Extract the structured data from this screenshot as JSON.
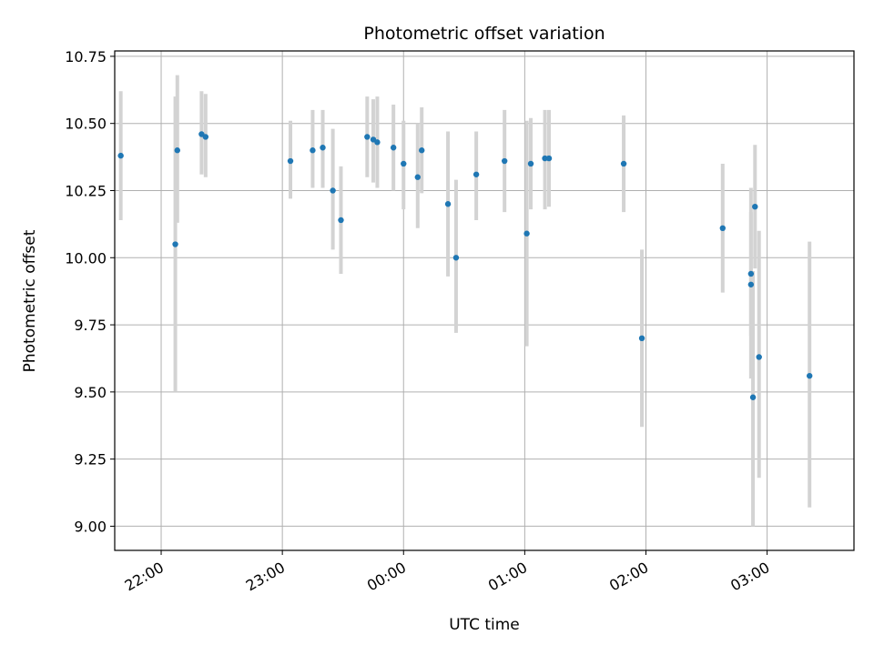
{
  "chart_data": {
    "type": "scatter",
    "title": "Photometric offset variation",
    "xlabel": "UTC time",
    "ylabel": "Photometric offset",
    "x_axis_type": "time",
    "xlim": [
      "21:37",
      "03:43"
    ],
    "ylim": [
      8.91,
      10.77
    ],
    "x_ticks": [
      "22:00",
      "23:00",
      "00:00",
      "01:00",
      "02:00",
      "03:00"
    ],
    "y_ticks": [
      "9.00",
      "9.25",
      "9.50",
      "9.75",
      "10.00",
      "10.25",
      "10.50",
      "10.75"
    ],
    "grid": true,
    "x_tick_rotation": "30 degrees",
    "marker_color": "#1f77b4",
    "errorbar_color": "#d3d3d3",
    "points": [
      {
        "t": "21:40",
        "y": 10.38,
        "lo": 10.14,
        "hi": 10.62
      },
      {
        "t": "22:07",
        "y": 10.05,
        "lo": 9.5,
        "hi": 10.6
      },
      {
        "t": "22:08",
        "y": 10.4,
        "lo": 10.13,
        "hi": 10.68
      },
      {
        "t": "22:20",
        "y": 10.46,
        "lo": 10.31,
        "hi": 10.62
      },
      {
        "t": "22:22",
        "y": 10.45,
        "lo": 10.3,
        "hi": 10.61
      },
      {
        "t": "23:04",
        "y": 10.36,
        "lo": 10.22,
        "hi": 10.51
      },
      {
        "t": "23:15",
        "y": 10.4,
        "lo": 10.26,
        "hi": 10.55
      },
      {
        "t": "23:20",
        "y": 10.41,
        "lo": 10.26,
        "hi": 10.55
      },
      {
        "t": "23:25",
        "y": 10.25,
        "lo": 10.03,
        "hi": 10.48
      },
      {
        "t": "23:29",
        "y": 10.14,
        "lo": 9.94,
        "hi": 10.34
      },
      {
        "t": "23:42",
        "y": 10.45,
        "lo": 10.3,
        "hi": 10.6
      },
      {
        "t": "23:45",
        "y": 10.44,
        "lo": 10.28,
        "hi": 10.59
      },
      {
        "t": "23:47",
        "y": 10.43,
        "lo": 10.26,
        "hi": 10.6
      },
      {
        "t": "23:55",
        "y": 10.41,
        "lo": 10.25,
        "hi": 10.57
      },
      {
        "t": "00:00",
        "y": 10.35,
        "lo": 10.18,
        "hi": 10.51
      },
      {
        "t": "00:07",
        "y": 10.3,
        "lo": 10.11,
        "hi": 10.5
      },
      {
        "t": "00:09",
        "y": 10.4,
        "lo": 10.24,
        "hi": 10.56
      },
      {
        "t": "00:22",
        "y": 10.2,
        "lo": 9.93,
        "hi": 10.47
      },
      {
        "t": "00:26",
        "y": 10.0,
        "lo": 9.72,
        "hi": 10.29
      },
      {
        "t": "00:36",
        "y": 10.31,
        "lo": 10.14,
        "hi": 10.47
      },
      {
        "t": "00:50",
        "y": 10.36,
        "lo": 10.17,
        "hi": 10.55
      },
      {
        "t": "01:01",
        "y": 10.09,
        "lo": 9.67,
        "hi": 10.51
      },
      {
        "t": "01:03",
        "y": 10.35,
        "lo": 10.18,
        "hi": 10.52
      },
      {
        "t": "01:10",
        "y": 10.37,
        "lo": 10.18,
        "hi": 10.55
      },
      {
        "t": "01:12",
        "y": 10.37,
        "lo": 10.19,
        "hi": 10.55
      },
      {
        "t": "01:49",
        "y": 10.35,
        "lo": 10.17,
        "hi": 10.53
      },
      {
        "t": "01:58",
        "y": 9.7,
        "lo": 9.37,
        "hi": 10.03
      },
      {
        "t": "02:38",
        "y": 10.11,
        "lo": 9.87,
        "hi": 10.35
      },
      {
        "t": "02:52",
        "y": 9.94,
        "lo": 9.71,
        "hi": 10.17
      },
      {
        "t": "02:52",
        "y": 9.9,
        "lo": 9.55,
        "hi": 10.26
      },
      {
        "t": "02:53",
        "y": 9.48,
        "lo": 9.0,
        "hi": 9.95
      },
      {
        "t": "02:54",
        "y": 10.19,
        "lo": 9.96,
        "hi": 10.42
      },
      {
        "t": "02:56",
        "y": 9.63,
        "lo": 9.18,
        "hi": 10.1
      },
      {
        "t": "03:21",
        "y": 9.56,
        "lo": 9.07,
        "hi": 10.06
      }
    ]
  }
}
